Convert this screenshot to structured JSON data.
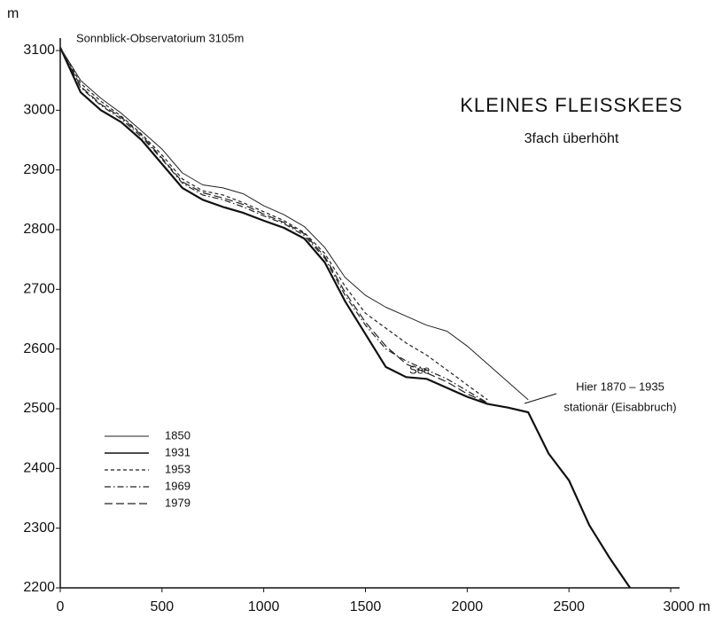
{
  "chart_data": {
    "type": "line",
    "title": "KLEINES FLEISSKEES",
    "subtitle": "3fach überhöht",
    "y_label": "m",
    "annotations": [
      "Sonnblick-Observatorium 3105m",
      "See",
      "Hier 1870 – 1935",
      "stationär (Eisabbruch)"
    ],
    "x": [
      0,
      100,
      200,
      300,
      400,
      500,
      600,
      700,
      800,
      900,
      1000,
      1100,
      1200,
      1300,
      1400,
      1500,
      1600,
      1700,
      1800,
      1900,
      2000,
      2100,
      2200,
      2300,
      2400,
      2500,
      2600,
      2700,
      2800
    ],
    "series": [
      {
        "name": "1850",
        "color": "#222",
        "width": 1,
        "dash": "none",
        "values": [
          3105,
          3050,
          3020,
          2995,
          2965,
          2935,
          2895,
          2875,
          2870,
          2860,
          2840,
          2825,
          2805,
          2770,
          2720,
          2690,
          2670,
          2655,
          2640,
          2630,
          2605,
          2575,
          2545,
          2515,
          null,
          null,
          null,
          null,
          null
        ]
      },
      {
        "name": "1931",
        "color": "#111",
        "width": 2.2,
        "dash": "none",
        "values": [
          3105,
          3030,
          3000,
          2980,
          2950,
          2910,
          2870,
          2850,
          2838,
          2828,
          2815,
          2803,
          2785,
          2745,
          2680,
          2625,
          2570,
          2553,
          2550,
          2535,
          2520,
          2508,
          2502,
          2494,
          2425,
          2380,
          2305,
          2250,
          2200
        ]
      },
      {
        "name": "1953",
        "color": "#222",
        "width": 1.2,
        "dash": "4 3",
        "values": [
          3105,
          3045,
          3015,
          2990,
          2960,
          2925,
          2885,
          2865,
          2858,
          2845,
          2830,
          2815,
          2795,
          2760,
          2705,
          2660,
          2635,
          2610,
          2590,
          2565,
          2540,
          2515,
          null,
          null,
          null,
          null,
          null,
          null,
          null
        ]
      },
      {
        "name": "1969",
        "color": "#222",
        "width": 1.2,
        "dash": "7 3 1.5 3",
        "values": [
          3105,
          3038,
          3008,
          2985,
          2955,
          2918,
          2878,
          2858,
          2850,
          2838,
          2823,
          2810,
          2790,
          2752,
          2690,
          2640,
          2600,
          2580,
          2565,
          2550,
          2530,
          2510,
          null,
          null,
          null,
          null,
          null,
          null,
          null
        ]
      },
      {
        "name": "1979",
        "color": "#222",
        "width": 1.2,
        "dash": "9 4",
        "values": [
          3105,
          3040,
          3010,
          2988,
          2958,
          2920,
          2880,
          2862,
          2853,
          2842,
          2826,
          2812,
          2793,
          2755,
          2695,
          2645,
          2605,
          2575,
          2560,
          2545,
          2525,
          2510,
          null,
          null,
          null,
          null,
          null,
          null,
          null
        ]
      }
    ],
    "xlim": [
      0,
      3000
    ],
    "xticks": [
      0,
      500,
      1000,
      1500,
      2000,
      2500,
      {
        "value": 3000,
        "label": "3000 m"
      }
    ],
    "ylim": [
      2200,
      3100
    ],
    "yticks": [
      2200,
      2300,
      2400,
      2500,
      2600,
      2700,
      2800,
      2900,
      3000,
      3100
    ],
    "grid": false,
    "legend": "lower-left"
  }
}
